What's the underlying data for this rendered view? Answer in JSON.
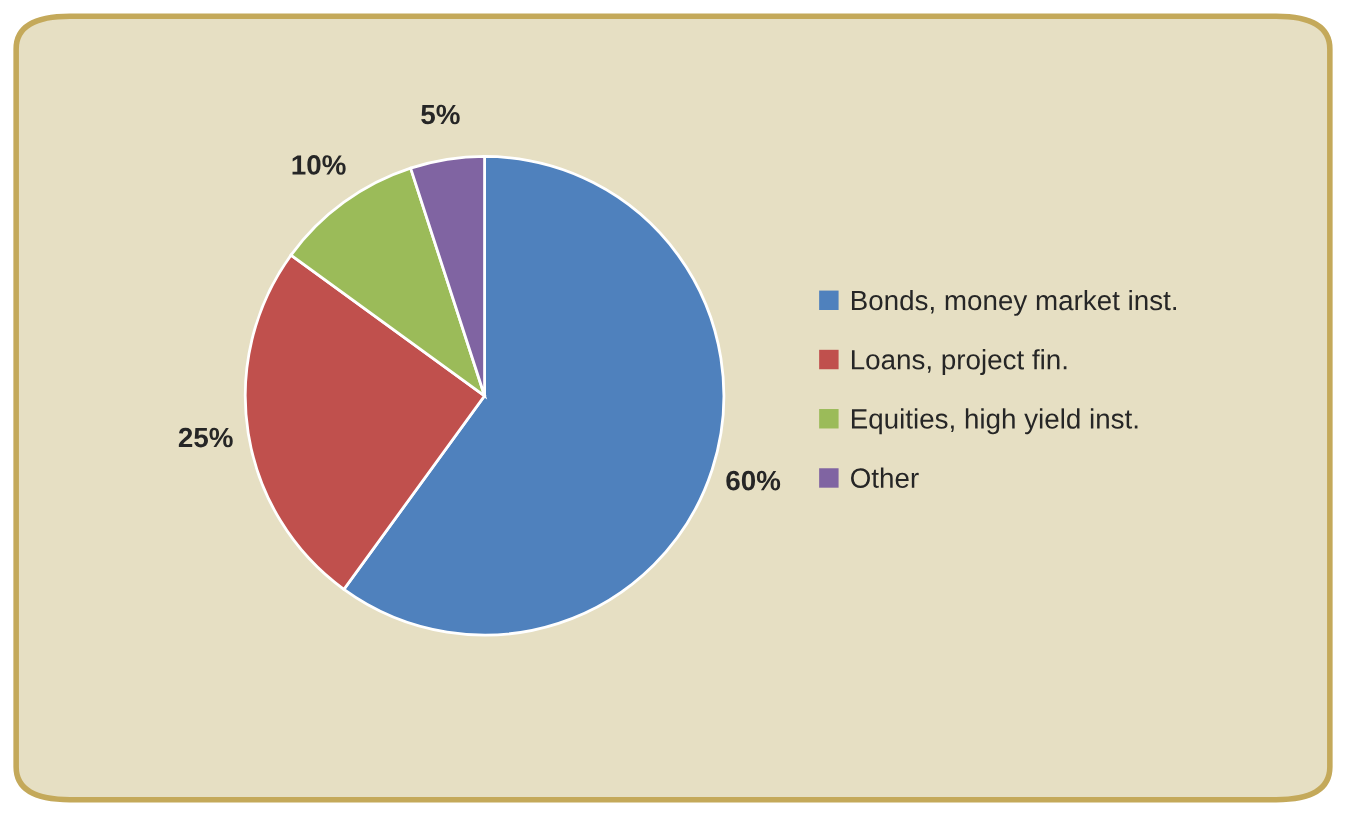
{
  "chart_data": {
    "type": "pie",
    "categories": [
      "Bonds, money market inst.",
      "Loans, project fin.",
      "Equities, high yield inst.",
      "Other"
    ],
    "values": [
      60,
      25,
      10,
      5
    ],
    "colors": [
      "#4f81bd",
      "#c0504d",
      "#9bbb59",
      "#8064a2"
    ],
    "value_labels": [
      "60%",
      "25%",
      "10%",
      "5%"
    ],
    "legend": "right"
  }
}
